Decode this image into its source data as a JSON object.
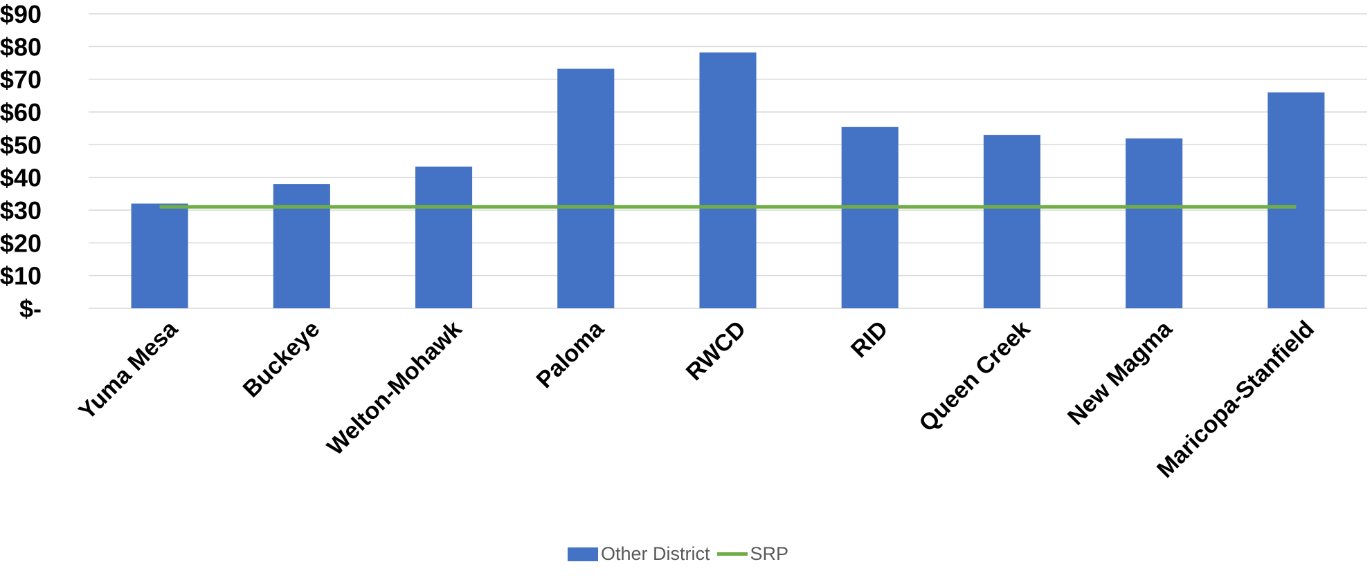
{
  "chart_data": {
    "type": "bar",
    "title": "",
    "xlabel": "",
    "ylabel": "",
    "ylim": [
      0,
      90
    ],
    "y_ticks": [
      0,
      10,
      20,
      30,
      40,
      50,
      60,
      70,
      80,
      90
    ],
    "y_tick_labels": [
      "$-",
      "$10",
      "$20",
      "$30",
      "$40",
      "$50",
      "$60",
      "$70",
      "$80",
      "$90"
    ],
    "grid": true,
    "categories": [
      "Yuma Mesa",
      "Buckeye",
      "Welton-Mohawk",
      "Paloma",
      "RWCD",
      "RID",
      "Queen Creek",
      "New Magma",
      "Maricopa-Stanfield"
    ],
    "series": [
      {
        "name": "Other District",
        "kind": "bar",
        "color": "#4472c4",
        "values": [
          32,
          38,
          43.3,
          73.2,
          78.2,
          55.4,
          53,
          51.9,
          66
        ]
      },
      {
        "name": "SRP",
        "kind": "line",
        "color": "#70ad47",
        "values": [
          31,
          31,
          31,
          31,
          31,
          31,
          31,
          31,
          31
        ]
      }
    ],
    "legend_position": "bottom"
  }
}
